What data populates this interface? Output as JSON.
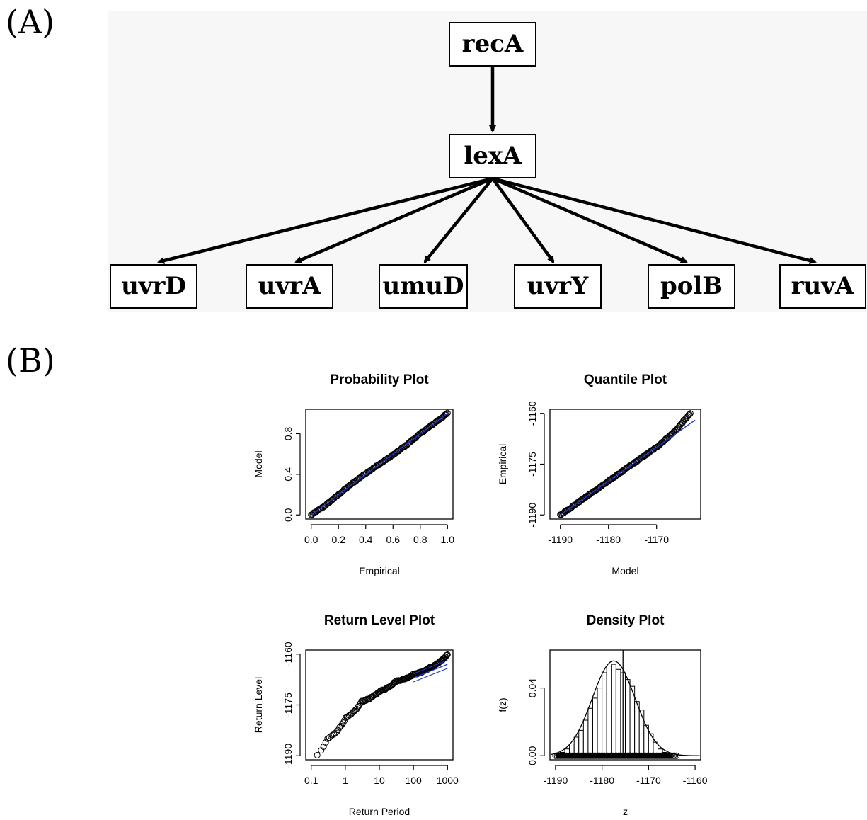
{
  "panel_a_label": "(A)",
  "panel_b_label": "(B)",
  "diagram": {
    "nodes": {
      "recA": "recA",
      "lexA": "lexA",
      "uvrD": "uvrD",
      "uvrA": "uvrA",
      "umuD": "umuD",
      "uvrY": "uvrY",
      "polB": "polB",
      "ruvA": "ruvA"
    },
    "edges": [
      [
        "recA",
        "lexA"
      ],
      [
        "lexA",
        "uvrD"
      ],
      [
        "lexA",
        "uvrA"
      ],
      [
        "lexA",
        "umuD"
      ],
      [
        "lexA",
        "uvrY"
      ],
      [
        "lexA",
        "polB"
      ],
      [
        "lexA",
        "ruvA"
      ]
    ]
  },
  "chart_data": [
    {
      "type": "scatter",
      "title": "Probability Plot",
      "xlabel": "Empirical",
      "ylabel": "Model",
      "xlim": [
        0.0,
        1.0
      ],
      "ylim": [
        0.0,
        1.0
      ],
      "xticks": [
        "0.0",
        "0.2",
        "0.4",
        "0.6",
        "0.8",
        "1.0"
      ],
      "yticks": [
        "0.0",
        "0.4",
        "0.8"
      ],
      "series": [
        {
          "values": [
            [
              0.0,
              0.0
            ],
            [
              0.1,
              0.09
            ],
            [
              0.2,
              0.2
            ],
            [
              0.3,
              0.31
            ],
            [
              0.4,
              0.41
            ],
            [
              0.5,
              0.5
            ],
            [
              0.6,
              0.59
            ],
            [
              0.7,
              0.69
            ],
            [
              0.8,
              0.8
            ],
            [
              0.9,
              0.9
            ],
            [
              1.0,
              1.0
            ]
          ]
        },
        {
          "values": [
            [
              0.0,
              0.0
            ],
            [
              1.0,
              1.0
            ]
          ],
          "color": "#2233cc"
        }
      ]
    },
    {
      "type": "scatter",
      "title": "Quantile Plot",
      "xlabel": "Model",
      "ylabel": "Empirical",
      "xlim": [
        -1191,
        -1162
      ],
      "ylim": [
        -1190,
        -1160
      ],
      "xticks": [
        "-1190",
        "-1180",
        "-1170"
      ],
      "yticks": [
        "-1190",
        "-1175",
        "-1160"
      ],
      "series": [
        {
          "values": [
            [
              -1190,
              -1190
            ],
            [
              -1185,
              -1185
            ],
            [
              -1180,
              -1180
            ],
            [
              -1175,
              -1175
            ],
            [
              -1170,
              -1170
            ],
            [
              -1166,
              -1165
            ],
            [
              -1163,
              -1160
            ]
          ]
        },
        {
          "values": [
            [
              -1190,
              -1190
            ],
            [
              -1162,
              -1162
            ]
          ],
          "color": "#2233cc"
        }
      ]
    },
    {
      "type": "scatter",
      "title": "Return Level Plot",
      "xlabel": "Return Period",
      "ylabel": "Return Level",
      "xscale": "log",
      "xlim": [
        0.1,
        1000
      ],
      "ylim": [
        -1190,
        -1160
      ],
      "xticks": [
        "0.1",
        "1",
        "10",
        "100",
        "1000"
      ],
      "yticks": [
        "-1190",
        "-1175",
        "-1160"
      ],
      "series": [
        {
          "values": [
            [
              0.15,
              -1190
            ],
            [
              0.3,
              -1185
            ],
            [
              1,
              -1179
            ],
            [
              3,
              -1174
            ],
            [
              10,
              -1171
            ],
            [
              30,
              -1168
            ],
            [
              100,
              -1166
            ],
            [
              300,
              -1164
            ],
            [
              1000,
              -1160
            ]
          ]
        },
        {
          "values": [
            [
              100,
              -1167
            ],
            [
              1000,
              -1163
            ]
          ],
          "color": "#2233cc"
        }
      ]
    },
    {
      "type": "bar",
      "title": "Density Plot",
      "xlabel": "z",
      "ylabel": "f(z)",
      "xlim": [
        -1190,
        -1160
      ],
      "ylim": [
        0.0,
        0.06
      ],
      "xticks": [
        "-1190",
        "-1180",
        "-1170",
        "-1160"
      ],
      "yticks": [
        "0.00",
        "0.04"
      ],
      "categories": [
        "-1190",
        "-1189",
        "-1188",
        "-1187",
        "-1186",
        "-1185",
        "-1184",
        "-1183",
        "-1182",
        "-1181",
        "-1180",
        "-1179",
        "-1178",
        "-1177",
        "-1176",
        "-1175",
        "-1174",
        "-1173",
        "-1172",
        "-1171",
        "-1170",
        "-1169",
        "-1168",
        "-1167",
        "-1166"
      ],
      "values": [
        0.001,
        0.002,
        0.004,
        0.007,
        0.011,
        0.015,
        0.021,
        0.028,
        0.034,
        0.04,
        0.049,
        0.053,
        0.054,
        0.051,
        0.049,
        0.045,
        0.041,
        0.032,
        0.027,
        0.018,
        0.013,
        0.008,
        0.004,
        0.002,
        0.001
      ]
    }
  ]
}
